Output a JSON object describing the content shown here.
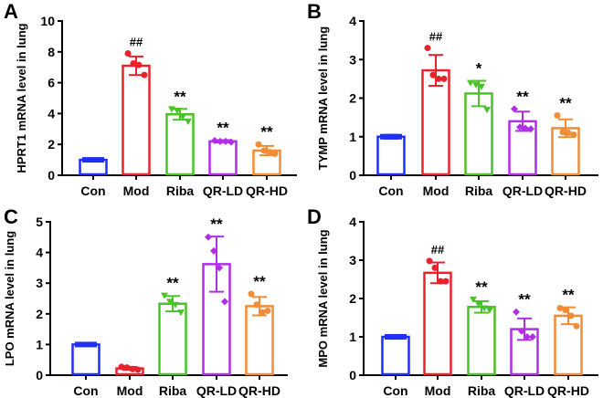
{
  "colors": {
    "Con": "#1f2ff5",
    "Mod": "#e8232b",
    "Riba": "#4cc22a",
    "QR-LD": "#b02ee8",
    "QR-HD": "#f28c35"
  },
  "chart_data": [
    {
      "type": "bar",
      "panel_label": "A",
      "ylabel": "HPRT1 mRNA level in lung",
      "ylim": [
        0,
        10
      ],
      "yticks": [
        0,
        2,
        4,
        6,
        8,
        10
      ],
      "categories": [
        "Con",
        "Mod",
        "Riba",
        "QR-LD",
        "QR-HD"
      ],
      "values": [
        1.0,
        7.1,
        3.95,
        2.2,
        1.6
      ],
      "sd": [
        0.08,
        0.6,
        0.35,
        0.08,
        0.3
      ],
      "points": [
        [
          1,
          1,
          1,
          1
        ],
        [
          7.9,
          7.25,
          7.15,
          6.5
        ],
        [
          4.3,
          4.2,
          3.8,
          3.5
        ],
        [
          2.25,
          2.2,
          2.2,
          2.15
        ],
        [
          2.0,
          1.6,
          1.5,
          1.4
        ]
      ],
      "annotations": [
        "",
        "##",
        "**",
        "**",
        "**"
      ]
    },
    {
      "type": "bar",
      "panel_label": "B",
      "ylabel": "TYMP mRNA level in lung",
      "ylim": [
        0,
        4
      ],
      "yticks": [
        0,
        1,
        2,
        3,
        4
      ],
      "categories": [
        "Con",
        "Mod",
        "Riba",
        "QR-LD",
        "QR-HD"
      ],
      "values": [
        1.0,
        2.72,
        2.12,
        1.4,
        1.22
      ],
      "sd": [
        0.05,
        0.4,
        0.33,
        0.25,
        0.23
      ],
      "points": [
        [
          1,
          1,
          1,
          1
        ],
        [
          3.3,
          2.6,
          2.5,
          2.5
        ],
        [
          2.4,
          2.35,
          2.3,
          1.7
        ],
        [
          1.72,
          1.25,
          1.22,
          1.2
        ],
        [
          1.55,
          1.12,
          1.1,
          1.05
        ]
      ],
      "annotations": [
        "",
        "##",
        "*",
        "**",
        "**"
      ]
    },
    {
      "type": "bar",
      "panel_label": "C",
      "ylabel": "LPO mRNA level in lung",
      "ylim": [
        0,
        5
      ],
      "yticks": [
        0,
        1,
        2,
        3,
        4,
        5
      ],
      "categories": [
        "Con",
        "Mod",
        "Riba",
        "QR-LD",
        "QR-HD"
      ],
      "values": [
        1.0,
        0.22,
        2.33,
        3.62,
        2.25
      ],
      "sd": [
        0.05,
        0.05,
        0.25,
        0.9,
        0.3
      ],
      "points": [
        [
          1,
          1,
          1,
          1
        ],
        [
          0.27,
          0.25,
          0.2,
          0.18
        ],
        [
          2.6,
          2.4,
          2.3,
          2.05
        ],
        [
          4.5,
          4.05,
          3.5,
          2.4
        ],
        [
          2.65,
          2.3,
          2.05,
          2.1
        ]
      ],
      "annotations": [
        "",
        "",
        "**",
        "**",
        "**"
      ]
    },
    {
      "type": "bar",
      "panel_label": "D",
      "ylabel": "MPO mRNA level in lung",
      "ylim": [
        0,
        4
      ],
      "yticks": [
        0,
        1,
        2,
        3,
        4
      ],
      "categories": [
        "Con",
        "Mod",
        "Riba",
        "QR-LD",
        "QR-HD"
      ],
      "values": [
        1.0,
        2.67,
        1.78,
        1.2,
        1.55
      ],
      "sd": [
        0.05,
        0.27,
        0.15,
        0.28,
        0.22
      ],
      "points": [
        [
          1,
          1,
          1,
          1
        ],
        [
          2.98,
          2.8,
          2.45,
          2.45
        ],
        [
          1.98,
          1.85,
          1.75,
          1.7
        ],
        [
          1.65,
          1.15,
          1.0,
          1.0
        ],
        [
          1.75,
          1.7,
          1.55,
          1.28
        ]
      ],
      "annotations": [
        "",
        "##",
        "**",
        "**",
        "**"
      ]
    }
  ]
}
